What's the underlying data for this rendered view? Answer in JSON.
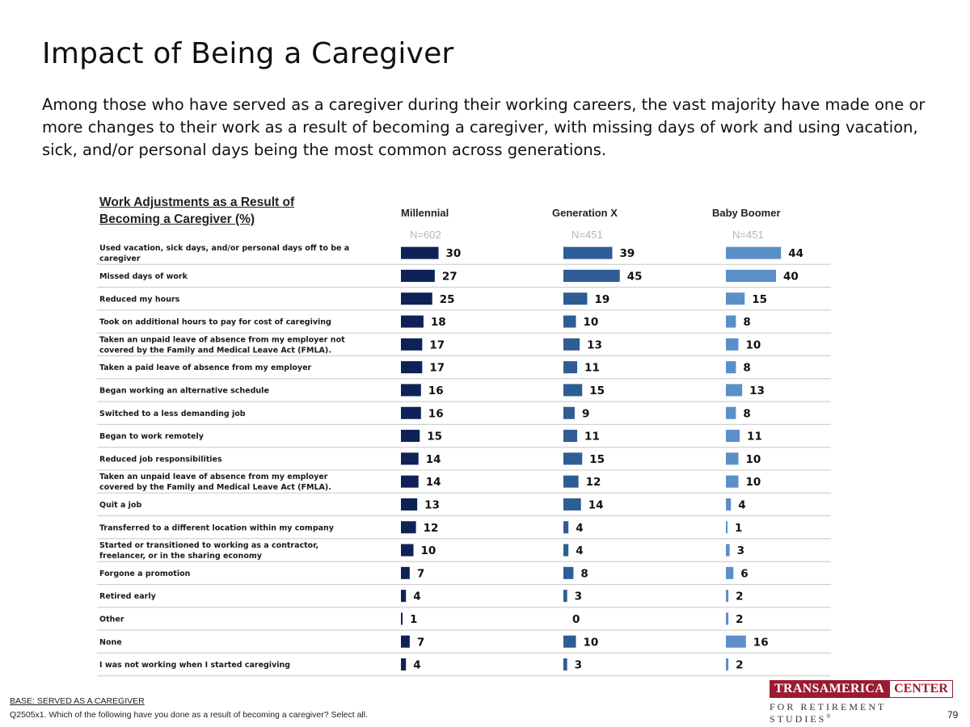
{
  "page": {
    "title": "Impact of Being a Caregiver",
    "subtitle": "Among those who have served as a caregiver during their working careers, the vast majority have made one or more changes to their work as a result of becoming a caregiver, with missing days of work and using vacation, sick, and/or personal days being the most common across generations.",
    "base_note": "BASE: SERVED AS A CAREGIVER",
    "question_note": "Q2505x1. Which of the following have you done as a result of becoming a caregiver? Select all.",
    "page_number": "79",
    "logo": {
      "name_left": "TRANSAMERICA",
      "name_right": "CENTER",
      "tagline": "FOR RETIREMENT STUDIES",
      "mark": "®"
    }
  },
  "chart_data": {
    "type": "bar",
    "orientation": "horizontal",
    "title": "Work Adjustments as a Result of Becoming a Caregiver (%)",
    "title_lines": [
      "Work Adjustments as a Result of",
      "Becoming a Caregiver (%)"
    ],
    "categories": [
      "Used vacation, sick days, and/or personal days off to be a caregiver",
      "Missed days of work",
      "Reduced my hours",
      "Took on additional hours to pay for cost of caregiving",
      "Taken an unpaid leave of absence from my employer not covered by the Family and Medical Leave Act (FMLA).",
      "Taken a paid leave of absence from my employer",
      "Began working an alternative schedule",
      "Switched to a less demanding job",
      "Began to work remotely",
      "Reduced job responsibilities",
      "Taken an unpaid leave of absence from my employer covered by the Family and Medical Leave Act (FMLA).",
      "Quit a job",
      "Transferred to a different location within my company",
      "Started or transitioned to working as a contractor, freelancer, or in the sharing economy",
      "Forgone a promotion",
      "Retired early",
      "Other",
      "None",
      "I was not working when I started caregiving"
    ],
    "category_lines": [
      [
        "Used vacation, sick days, and/or personal days off to be a",
        "caregiver"
      ],
      [
        "Missed days of work"
      ],
      [
        "Reduced my hours"
      ],
      [
        "Took on additional hours to pay for cost of caregiving"
      ],
      [
        "Taken an unpaid leave of absence from my employer not",
        "covered by the Family and Medical Leave Act (FMLA)."
      ],
      [
        "Taken a paid leave of absence from my employer"
      ],
      [
        "Began working an alternative schedule"
      ],
      [
        "Switched to a less demanding job"
      ],
      [
        "Began to work remotely"
      ],
      [
        "Reduced job responsibilities"
      ],
      [
        "Taken an unpaid leave of absence from my employer",
        "covered by the Family and Medical Leave Act (FMLA)."
      ],
      [
        "Quit a job"
      ],
      [
        "Transferred to a different location within my company"
      ],
      [
        "Started or transitioned to working as a contractor,",
        "freelancer, or in the sharing economy"
      ],
      [
        "Forgone a promotion"
      ],
      [
        "Retired early"
      ],
      [
        "Other"
      ],
      [
        "None"
      ],
      [
        "I was not working when I started caregiving"
      ]
    ],
    "series": [
      {
        "name": "Millennial",
        "n_label": "N=602",
        "color": "#0f2257",
        "values": [
          30,
          27,
          25,
          18,
          17,
          17,
          16,
          16,
          15,
          14,
          14,
          13,
          12,
          10,
          7,
          4,
          1,
          7,
          4
        ]
      },
      {
        "name": "Generation X",
        "n_label": "N=451",
        "color": "#2e5d95",
        "values": [
          39,
          45,
          19,
          10,
          13,
          11,
          15,
          9,
          11,
          15,
          12,
          14,
          4,
          4,
          8,
          3,
          0,
          10,
          3
        ]
      },
      {
        "name": "Baby Boomer",
        "n_label": "N=451",
        "color": "#5b8fc8",
        "values": [
          44,
          40,
          15,
          8,
          10,
          8,
          13,
          8,
          11,
          10,
          10,
          4,
          1,
          3,
          6,
          2,
          2,
          16,
          2
        ]
      }
    ],
    "xlim": [
      0,
      45
    ],
    "grid": false,
    "legend": "column headers"
  }
}
